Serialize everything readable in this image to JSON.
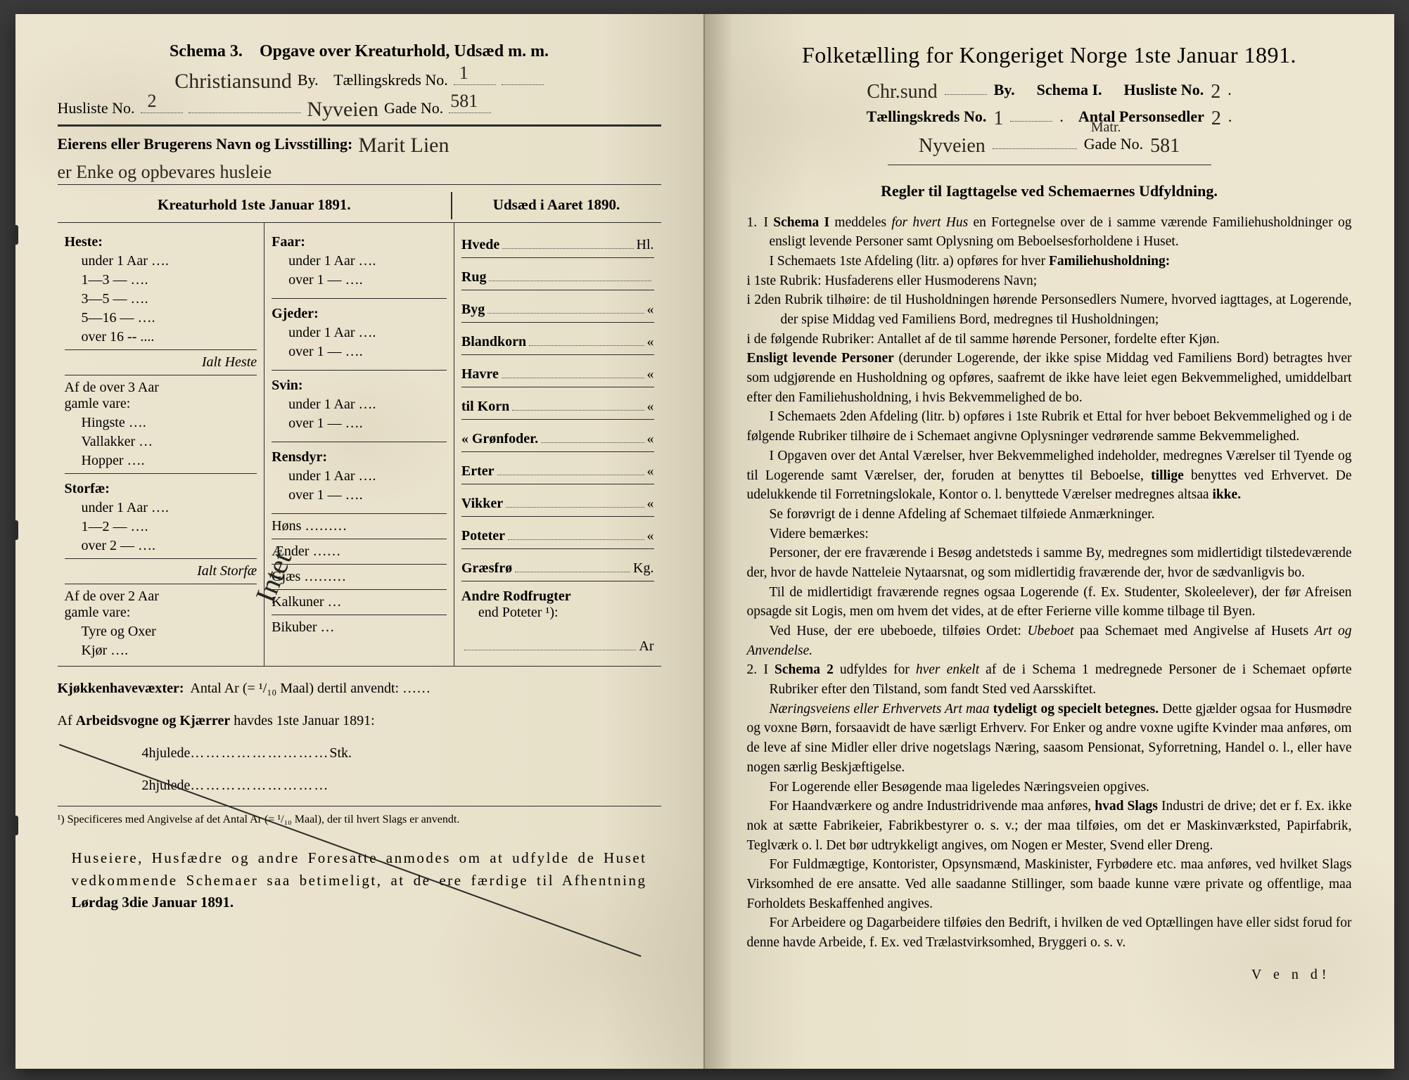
{
  "left": {
    "header": {
      "schema": "Schema 3.",
      "title": "Opgave over Kreaturhold, Udsæd m. m."
    },
    "city_hw": "Christiansund",
    "by": "By.",
    "kreds_label": "Tællingskreds No.",
    "kreds_no": "1",
    "husliste_label": "Husliste No.",
    "husliste_no": "2",
    "gade_hw": "Nyveien",
    "gade_label": "Gade No.",
    "gade_no": "581",
    "owner_label": "Eierens eller Brugerens Navn og Livsstilling:",
    "owner_hw1": "Marit Lien",
    "owner_hw2": "er Enke og opbevares husleie",
    "col_head_left": "Kreaturhold 1ste Januar 1891.",
    "col_head_right": "Udsæd i Aaret 1890.",
    "c1": {
      "heste": "Heste:",
      "heste_rows": [
        "under 1 Aar ….",
        "1—3   —   ….",
        "3—5   —   ….",
        "5—16  —   ….",
        "over 16 --  ...."
      ],
      "ialt_heste": "Ialt Heste",
      "af3": "Af de over 3 Aar",
      "gamle": "gamle vare:",
      "af3_rows": [
        "Hingste ….",
        "Vallakker …",
        "Hopper …."
      ],
      "storfae": "Storfæ:",
      "storfae_rows": [
        "under 1 Aar ….",
        "1—2  — ….",
        "over 2  — …."
      ],
      "ialt_storfae": "Ialt Storfæ",
      "af2": "Af de over 2 Aar",
      "af2_rows": [
        "Tyre og Oxer",
        "Kjør …."
      ]
    },
    "c2": {
      "faar": "Faar:",
      "faar_rows": [
        "under 1 Aar ….",
        "over 1  — …."
      ],
      "gjeder": "Gjeder:",
      "gjeder_rows": [
        "under 1 Aar ….",
        "over 1  —  …."
      ],
      "svin": "Svin:",
      "svin_rows": [
        "under 1 Aar ….",
        "over 1  —  …."
      ],
      "rensdyr": "Rensdyr:",
      "rensdyr_rows": [
        "under 1 Aar ….",
        "over 1  — …."
      ],
      "other": [
        "Høns ………",
        "Ænder ……",
        "Gjæs ………",
        "Kalkuner …",
        "Bikuber …"
      ]
    },
    "c3": {
      "rows1": [
        [
          "Hvede",
          "Hl."
        ],
        [
          "Rug",
          ""
        ],
        [
          "Byg",
          "«"
        ],
        [
          "Blandkorn",
          "«"
        ],
        [
          "Havre",
          "«"
        ],
        [
          "til Korn",
          "«"
        ],
        [
          "«  Grønfoder.",
          "«"
        ],
        [
          "Erter",
          "«"
        ],
        [
          "Vikker",
          "«"
        ],
        [
          "Poteter",
          "«"
        ],
        [
          "Græsfrø",
          "Kg."
        ]
      ],
      "andre": "Andre Rodfrugter",
      "end": "end Poteter ¹):",
      "ar": "Ar"
    },
    "slash_word": "Intet",
    "kjokken": "Kjøkkenhavevæxter:",
    "kjokken_rest": "Antal Ar (= ¹/₁₀ Maal) dertil anvendt: ……",
    "vogne": "Af Arbeidsvogne og Kjærrer havdes 1ste Januar 1891:",
    "hjul4": "4hjulede",
    "hjul2": "2hjulede",
    "stk": "Stk.",
    "footnote": "¹) Specificeres med Angivelse af det Antal Ar (= ¹/₁₀ Maal), der til hvert Slags er anvendt.",
    "closing1": "Huseiere, Husfædre og andre Foresatte anmodes om at udfylde de Huset vedkommende Schemaer saa betimeligt, at de ere færdige til Afhentning",
    "closing_bold": "Lørdag 3die Januar 1891."
  },
  "right": {
    "header": "Folketælling for Kongeriget Norge 1ste Januar 1891.",
    "city_hw": "Chr.sund",
    "by": "By.",
    "schema": "Schema I.",
    "husliste_label": "Husliste No.",
    "husliste_no": "2",
    "kreds_label": "Tællingskreds No.",
    "kreds_no": "1",
    "antal_label": "Antal Personsedler",
    "antal_no": "2",
    "gade_hw": "Nyveien",
    "matr": "Matr.",
    "gade_label": "Gade No.",
    "gade_no": "581",
    "rules_title": "Regler til Iagttagelse ved Schemaernes Udfyldning.",
    "p1a": "I ",
    "p1b": "Schema I",
    "p1c": " meddeles ",
    "p1d": "for hvert Hus",
    "p1e": " en Fortegnelse over de i samme værende Familiehusholdninger og ensligt levende Personer samt Oplysning om Beboelsesforholdene i Huset.",
    "p2": "I Schemaets 1ste Afdeling (litr. a) opføres for hver ",
    "p2b": "Familiehusholdning:",
    "p3": "i 1ste Rubrik: Husfaderens eller Husmoderens Navn;",
    "p4": "i 2den Rubrik tilhøire: de til Husholdningen hørende Personsedlers Numere, hvorved iagttages, at Logerende, der spise Middag ved Familiens Bord, medregnes til Husholdningen;",
    "p5": "i de følgende Rubriker: Antallet af de til samme hørende Personer, fordelte efter Kjøn.",
    "p6a": "Ensligt levende Personer",
    "p6b": " (derunder Logerende, der ikke spise Middag ved Familiens Bord) betragtes hver som udgjørende en Husholdning og opføres, saafremt de ikke have leiet egen Bekvemmelighed, umiddelbart efter den Familiehusholdning, i hvis Bekvemmelighed de bo.",
    "p7": "I Schemaets 2den Afdeling (litr. b) opføres i 1ste Rubrik et Ettal for hver beboet Bekvemmelighed og i de følgende Rubriker tilhøire de i Schemaet angivne Oplysninger vedrørende samme Bekvemmelighed.",
    "p8a": "I Opgaven over det Antal Værelser, hver Bekvemmelighed indeholder, medregnes Værelser til Tyende og til Logerende samt Værelser, der, foruden at benyttes til Beboelse, ",
    "p8b": "tillige",
    "p8c": " benyttes ved Erhvervet. De udelukkende til Forretningslokale, Kontor o. l. benyttede Værelser medregnes altsaa ",
    "p8d": "ikke.",
    "p9": "Se forøvrigt de i denne Afdeling af Schemaet tilføiede Anmærkninger.",
    "p10": "Videre bemærkes:",
    "p11": "Personer, der ere fraværende i Besøg andetsteds i samme By, medregnes som midlertidigt tilstedeværende der, hvor de havde Natteleie Nytaarsnat, og som midlertidig fraværende der, hvor de sædvanligvis bo.",
    "p12": "Til de midlertidigt fraværende regnes ogsaa Logerende (f. Ex. Studenter, Skoleelever), der før Afreisen opsagde sit Logis, men om hvem det vides, at de efter Ferierne ville komme tilbage til Byen.",
    "p13a": "Ved Huse, der ere ubeboede, tilføies Ordet: ",
    "p13b": "Ubeboet",
    "p13c": " paa Schemaet med Angivelse af Husets ",
    "p13d": "Art og Anvendelse.",
    "p14a": "I ",
    "p14b": "Schema 2",
    "p14c": " udfyldes for ",
    "p14d": "hver enkelt",
    "p14e": " af de i Schema 1 medregnede Personer de i Schemaet opførte Rubriker efter den Tilstand, som fandt Sted ved Aarsskiftet.",
    "p15a": "Næringsveiens eller Erhvervets Art maa ",
    "p15b": "tydeligt og specielt betegnes.",
    "p15c": " Dette gjælder ogsaa for Husmødre og voxne Børn, forsaavidt de have særligt Erhverv. For Enker og andre voxne ugifte Kvinder maa anføres, om de leve af sine Midler eller drive nogetslags Næring, saasom Pensionat, Syforretning, Handel o. l., eller have nogen særlig Beskjæftigelse.",
    "p16": "For Logerende eller Besøgende maa ligeledes Næringsveien opgives.",
    "p17a": "For Haandværkere og andre Industridrivende maa anføres, ",
    "p17b": "hvad Slags",
    "p17c": " Industri de drive; det er f. Ex. ikke nok at sætte Fabrikeier, Fabrikbestyrer o. s. v.; der maa tilføies, om det er Maskinværksted, Papirfabrik, Teglværk o. l. Det bør udtrykkeligt angives, om Nogen er Mester, Svend eller Dreng.",
    "p18": "For Fuldmægtige, Kontorister, Opsynsmænd, Maskinister, Fyrbødere etc. maa anføres, ved hvilket Slags Virksomhed de ere ansatte. Ved alle saadanne Stillinger, som baade kunne være private og offentlige, maa Forholdets Beskaffenhed angives.",
    "p19": "For Arbeidere og Dagarbeidere tilføies den Bedrift, i hvilken de ved Optællingen have eller sidst forud for denne havde Arbeide, f. Ex. ved Trælastvirksomhed, Bryggeri o. s. v.",
    "vend": "V e n d!"
  }
}
